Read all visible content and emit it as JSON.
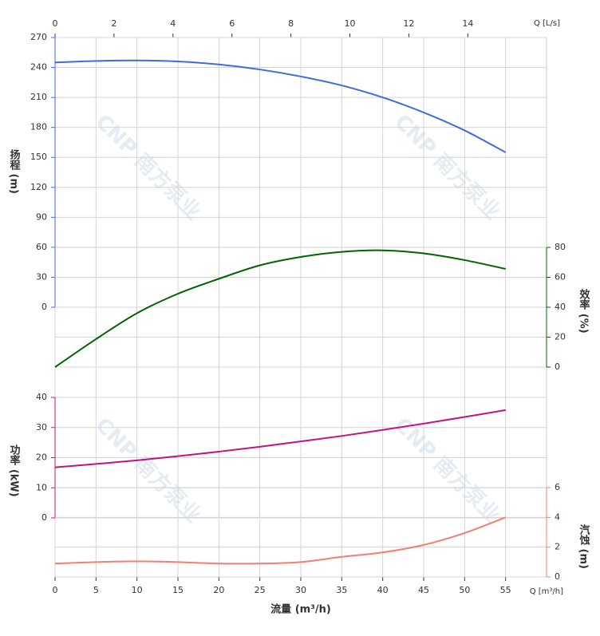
{
  "chart_data": {
    "type": "line",
    "watermark": "CNP 南方泵业",
    "x_label": "流量 (m³/h)",
    "x_unit": "Q [m³/h]",
    "x2_unit": "Q [L/s]",
    "x": [
      0,
      5,
      10,
      15,
      20,
      25,
      30,
      35,
      40,
      45,
      50,
      55
    ],
    "xlim": [
      0,
      60
    ],
    "xticks": [
      0,
      5,
      10,
      15,
      20,
      25,
      30,
      35,
      40,
      45,
      50,
      55
    ],
    "x2lim": [
      0,
      16.67
    ],
    "x2ticks": [
      0,
      2,
      4,
      6,
      8,
      10,
      12,
      14
    ],
    "grid": true,
    "series": [
      {
        "name": "扬程 (m)",
        "color": "#4169e1",
        "side": "left",
        "values": [
          245,
          246.5,
          247,
          246,
          243,
          238,
          231,
          222,
          210,
          195,
          177,
          155
        ],
        "ylim": [
          0,
          270
        ],
        "yticks": [
          0,
          30,
          60,
          90,
          120,
          150,
          180,
          210,
          240,
          270
        ]
      },
      {
        "name": "效率 (%)",
        "color": "#006400",
        "side": "right",
        "values": [
          0,
          18.7,
          36,
          49,
          59,
          68,
          73.6,
          77,
          78,
          76,
          71.5,
          65.6
        ],
        "ylim": [
          0,
          80
        ],
        "yticks": [
          0,
          20,
          40,
          60,
          80
        ]
      },
      {
        "name": "功率 (kW)",
        "color": "#c0147f",
        "side": "left",
        "values": [
          16.8,
          17.9,
          19.1,
          20.5,
          22,
          23.6,
          25.4,
          27.2,
          29.2,
          31.3,
          33.5,
          35.8
        ],
        "ylim": [
          0,
          40
        ],
        "yticks": [
          0,
          10,
          20,
          30,
          40
        ]
      },
      {
        "name": "汽蚀 (m)",
        "color": "#f08070",
        "side": "right",
        "values": [
          0.9,
          1.0,
          1.05,
          1.0,
          0.9,
          0.9,
          1.0,
          1.35,
          1.65,
          2.15,
          2.95,
          4.0
        ],
        "ylim": [
          0,
          6
        ],
        "yticks": [
          0,
          2,
          4,
          6
        ]
      }
    ]
  }
}
